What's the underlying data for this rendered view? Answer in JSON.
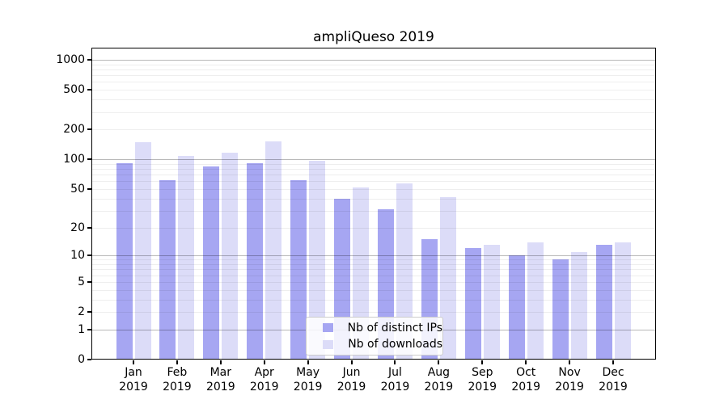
{
  "chart_data": {
    "type": "bar",
    "title": "ampliQueso 2019",
    "xlabel": "",
    "ylabel": "",
    "yscale": "log1p",
    "grid": true,
    "legend_position": "lower center",
    "yticks": [
      0,
      1,
      2,
      5,
      10,
      20,
      50,
      100,
      200,
      500,
      1000
    ],
    "ylim": [
      0,
      1000
    ],
    "months": [
      "Jan",
      "Feb",
      "Mar",
      "Apr",
      "May",
      "Jun",
      "Jul",
      "Aug",
      "Sep",
      "Oct",
      "Nov",
      "Dec"
    ],
    "year": "2019",
    "categories": [
      "Jan 2019",
      "Feb 2019",
      "Mar 2019",
      "Apr 2019",
      "May 2019",
      "Jun 2019",
      "Jul 2019",
      "Aug 2019",
      "Sep 2019",
      "Oct 2019",
      "Nov 2019",
      "Dec 2019"
    ],
    "series": [
      {
        "name": "Nb of distinct IPs",
        "color": "#a6a6f2",
        "values": [
          92,
          62,
          84,
          92,
          62,
          40,
          31,
          15,
          12,
          10,
          9,
          13
        ]
      },
      {
        "name": "Nb of downloads",
        "color": "#dcdcf8",
        "values": [
          148,
          108,
          116,
          153,
          97,
          52,
          57,
          41,
          13,
          14,
          11,
          14
        ]
      }
    ]
  }
}
